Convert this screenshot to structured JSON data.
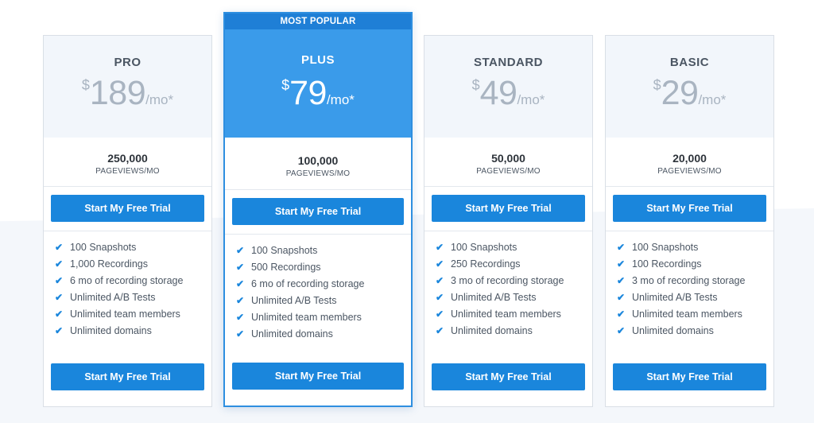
{
  "plans": [
    {
      "name": "PRO",
      "currency": "$",
      "amount": "189",
      "period": "/mo*",
      "pageviews": "250,000",
      "pageviews_label": "PAGEVIEWS/MO",
      "cta": "Start My Free Trial",
      "features": [
        "100 Snapshots",
        "1,000 Recordings",
        "6 mo of recording storage",
        "Unlimited A/B Tests",
        "Unlimited team members",
        "Unlimited domains"
      ]
    },
    {
      "badge": "MOST POPULAR",
      "name": "PLUS",
      "currency": "$",
      "amount": "79",
      "period": "/mo*",
      "pageviews": "100,000",
      "pageviews_label": "PAGEVIEWS/MO",
      "cta": "Start My Free Trial",
      "features": [
        "100 Snapshots",
        "500 Recordings",
        "6 mo of recording storage",
        "Unlimited A/B Tests",
        "Unlimited team members",
        "Unlimited domains"
      ]
    },
    {
      "name": "STANDARD",
      "currency": "$",
      "amount": "49",
      "period": "/mo*",
      "pageviews": "50,000",
      "pageviews_label": "PAGEVIEWS/MO",
      "cta": "Start My Free Trial",
      "features": [
        "100 Snapshots",
        "250 Recordings",
        "3 mo of recording storage",
        "Unlimited A/B Tests",
        "Unlimited team members",
        "Unlimited domains"
      ]
    },
    {
      "name": "BASIC",
      "currency": "$",
      "amount": "29",
      "period": "/mo*",
      "pageviews": "20,000",
      "pageviews_label": "PAGEVIEWS/MO",
      "cta": "Start My Free Trial",
      "features": [
        "100 Snapshots",
        "100 Recordings",
        "3 mo of recording storage",
        "Unlimited A/B Tests",
        "Unlimited team members",
        "Unlimited domains"
      ]
    }
  ],
  "icons": {
    "feature_check": "check-icon"
  },
  "colors": {
    "accent": "#1a86dc",
    "featured_header": "#3a9bea",
    "ribbon": "#1f7fd6"
  }
}
